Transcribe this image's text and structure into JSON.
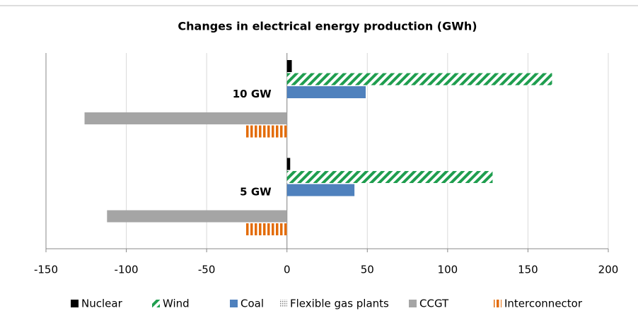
{
  "chart_data": {
    "type": "hbar",
    "title": "Changes in electrical energy production (GWh)",
    "categories": [
      "10 GW",
      "5 GW"
    ],
    "series": [
      {
        "name": "Nuclear",
        "color": "#000000",
        "hatch": "solid",
        "values": [
          3,
          2
        ]
      },
      {
        "name": "Wind",
        "color": "#1f9e4f",
        "hatch": "diagonal",
        "values": [
          165,
          128
        ]
      },
      {
        "name": "Coal",
        "color": "#4f81bd",
        "hatch": "solid",
        "values": [
          49,
          42
        ]
      },
      {
        "name": "Flexible gas plants",
        "color": "#7f7f7f",
        "hatch": "dots",
        "values": [
          0,
          0
        ]
      },
      {
        "name": "CCGT",
        "color": "#a5a5a5",
        "hatch": "solid",
        "values": [
          -126,
          -112
        ]
      },
      {
        "name": "Interconnector",
        "color": "#e36c0a",
        "hatch": "vertical",
        "values": [
          -26,
          -26
        ]
      }
    ],
    "xlim": [
      -150,
      200
    ],
    "xticks": [
      -150,
      -100,
      -50,
      0,
      50,
      100,
      150,
      200
    ],
    "grid": true,
    "legend": "bottom"
  }
}
